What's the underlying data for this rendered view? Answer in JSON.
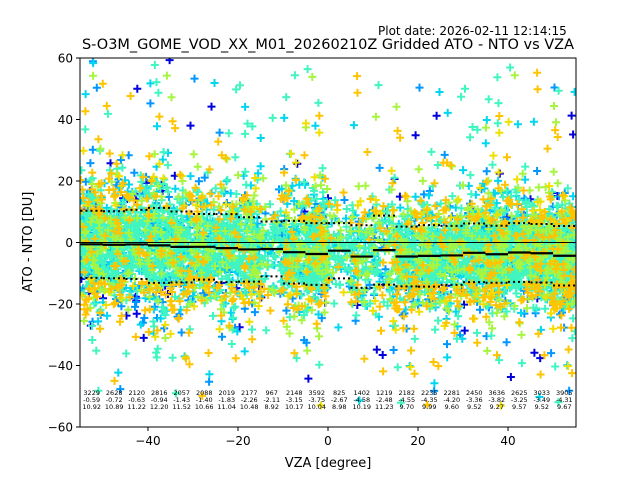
{
  "chart_data": {
    "type": "scatter",
    "plot_date": "Plot date: 2026-02-11 12:14:15",
    "title": "S-O3M_GOME_VOD_XX_M01_20260210Z Gridded ATO - NTO vs VZA",
    "xlabel": "VZA [degree]",
    "ylabel": "ATO - NTO [DU]",
    "xlim": [
      -55.1,
      55.1
    ],
    "ylim": [
      -60,
      60
    ],
    "xticks": [
      -40,
      -20,
      0,
      20,
      40
    ],
    "xtick_labels": [
      "−40",
      "−20",
      "0",
      "20",
      "40"
    ],
    "yticks": [
      60,
      40,
      20,
      0,
      -20,
      -40,
      -60
    ],
    "ytick_labels": [
      "60",
      "40",
      "20",
      "0",
      "−20",
      "−40",
      "−60"
    ],
    "grid": false,
    "marker": "+",
    "colormap": [
      "#0000dd",
      "#0096ff",
      "#00d6f0",
      "#40f5c0",
      "#a6f540",
      "#f0e000",
      "#ffc400"
    ],
    "bin_centers": [
      -52.5,
      -47.5,
      -42.5,
      -37.5,
      -32.5,
      -27.5,
      -22.5,
      -17.5,
      -12.5,
      -7.5,
      -2.5,
      2.5,
      7.5,
      12.5,
      17.5,
      22.5,
      27.5,
      32.5,
      37.5,
      42.5,
      47.5,
      52.5
    ],
    "counts": [
      "3229",
      "2628",
      "2120",
      "2816",
      "2057",
      "2088",
      "2019",
      "2177",
      "967",
      "2148",
      "3592",
      "825",
      "1402",
      "1219",
      "2182",
      "2235",
      "2281",
      "2450",
      "3636",
      "2625",
      "3033",
      "3905"
    ],
    "means": [
      "-0.59",
      "-0.72",
      "-0.63",
      "-0.94",
      "-1.43",
      "-1.40",
      "-1.83",
      "-2.26",
      "-2.11",
      "-3.15",
      "-3.75",
      "-2.67",
      "-4.58",
      "-2.48",
      "-4.55",
      "-4.35",
      "-4.20",
      "-3.36",
      "-3.82",
      "-3.25",
      "-3.49",
      "-4.31"
    ],
    "stds": [
      "10.92",
      "10.89",
      "11.22",
      "12.20",
      "11.52",
      "10.66",
      "11.04",
      "10.48",
      "8.92",
      "10.17",
      "10.04",
      "8.98",
      "10.19",
      "11.23",
      "9.70",
      "9.99",
      "9.60",
      "9.52",
      "9.27",
      "9.57",
      "9.52",
      "9.67"
    ],
    "zero_line": 0
  }
}
